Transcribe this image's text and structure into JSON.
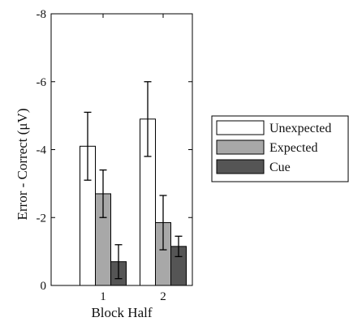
{
  "chart_data": {
    "type": "bar",
    "xlabel": "Block Half",
    "ylabel": "Error - Correct (μV)",
    "categories": [
      "1",
      "2"
    ],
    "ylim": [
      0,
      -8
    ],
    "y_axis_reversed": true,
    "yticks": [
      0,
      -2,
      -4,
      -6,
      -8
    ],
    "ytick_labels": [
      "0",
      "-2",
      "-4",
      "-6",
      "-8"
    ],
    "grid": false,
    "legend_position": "right",
    "series": [
      {
        "name": "Unexpected",
        "values": [
          -4.1,
          -4.9
        ],
        "errors": [
          1.0,
          1.1
        ],
        "color": "#ffffff"
      },
      {
        "name": "Expected",
        "values": [
          -2.7,
          -1.85
        ],
        "errors": [
          0.7,
          0.8
        ],
        "color": "#a8a8a8"
      },
      {
        "name": "Cue",
        "values": [
          -0.7,
          -1.15
        ],
        "errors": [
          0.5,
          0.3
        ],
        "color": "#555555"
      }
    ]
  }
}
